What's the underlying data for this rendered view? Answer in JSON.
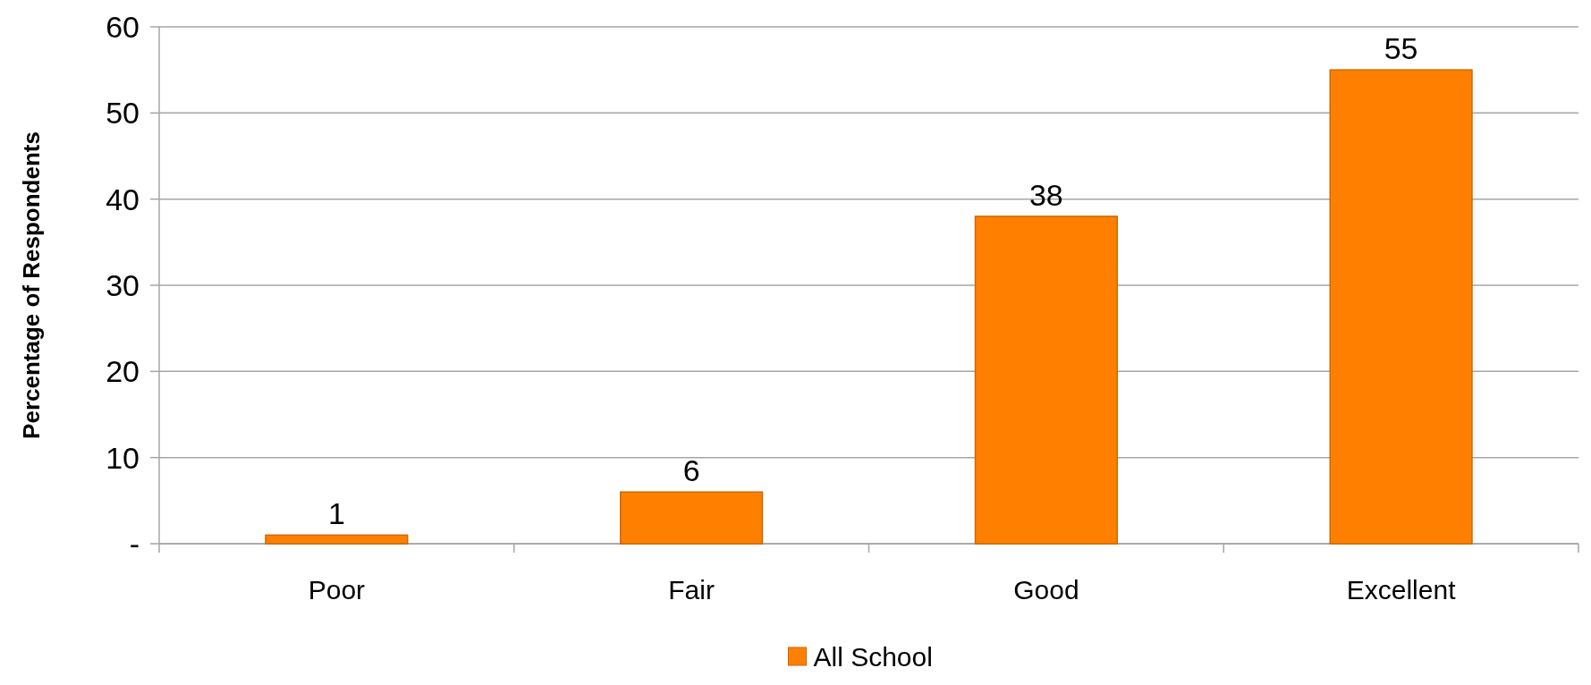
{
  "chart_data": {
    "type": "bar",
    "ylabel": "Percentage of Respondents",
    "categories": [
      "Poor",
      "Fair",
      "Good",
      "Excellent"
    ],
    "series": [
      {
        "name": "All School",
        "color": "#ff8000",
        "values": [
          1,
          6,
          38,
          55
        ]
      }
    ],
    "ylim": [
      0,
      60
    ],
    "yticks": [
      {
        "value": 0,
        "label": "-"
      },
      10,
      20,
      30,
      40,
      50,
      60
    ],
    "grid": "y",
    "legend": "bottom",
    "data_labels": true
  }
}
